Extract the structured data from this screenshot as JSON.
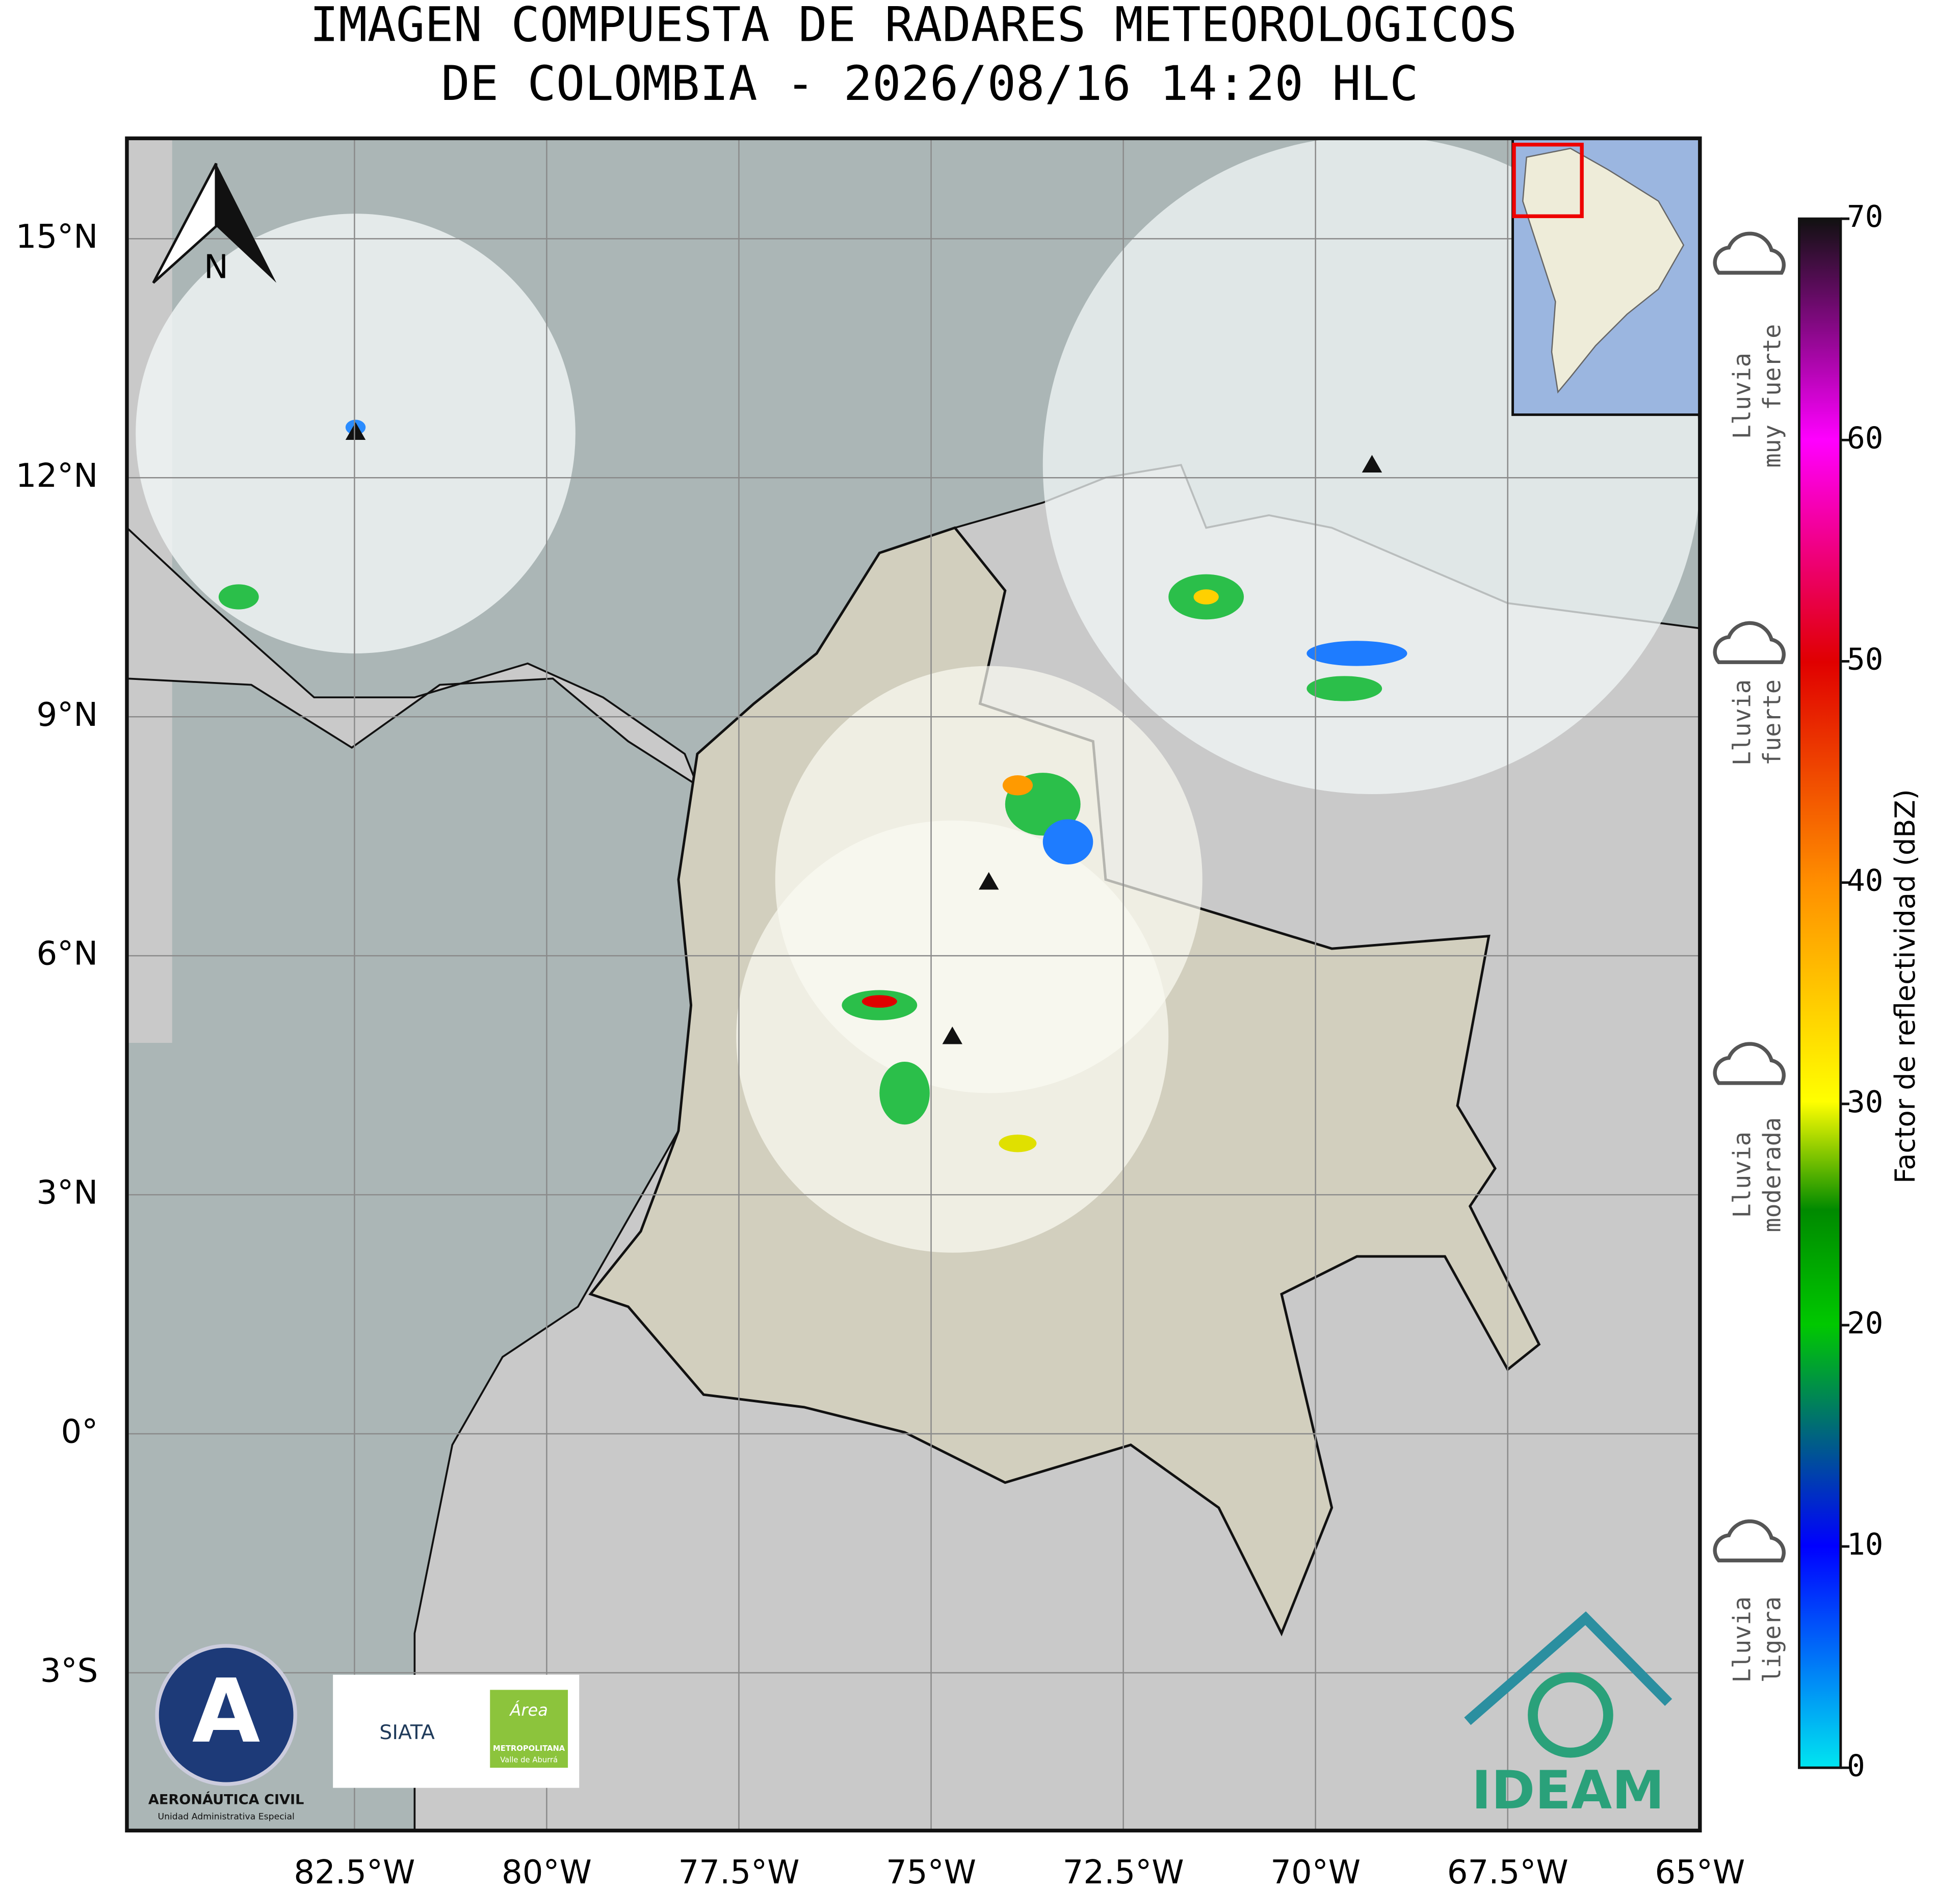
{
  "title": [
    "IMAGEN COMPUESTA DE RADARES METEOROLOGICOS",
    "DE COLOMBIA - 2026/08/16 14:20 HLC"
  ],
  "map": {
    "xlim": [
      -85.46,
      -65
    ],
    "ylim": [
      -4.98,
      16.26
    ],
    "xticks": [
      {
        "value": -82.5,
        "label": "82.5°W"
      },
      {
        "value": -80,
        "label": "80°W"
      },
      {
        "value": -77.5,
        "label": "77.5°W"
      },
      {
        "value": -75,
        "label": "75°W"
      },
      {
        "value": -72.5,
        "label": "72.5°W"
      },
      {
        "value": -70,
        "label": "70°W"
      },
      {
        "value": -67.5,
        "label": "67.5°W"
      },
      {
        "value": -65,
        "label": "65°W"
      }
    ],
    "yticks": [
      {
        "value": 15,
        "label": "15°N"
      },
      {
        "value": 12,
        "label": "12°N"
      },
      {
        "value": 9,
        "label": "9°N"
      },
      {
        "value": 6,
        "label": "6°N"
      },
      {
        "value": 3,
        "label": "3°N"
      },
      {
        "value": 0,
        "label": "0°"
      },
      {
        "value": -3,
        "label": "3°S"
      }
    ],
    "north": "N"
  },
  "colorbar": {
    "label": "Factor de reflectividad (dBZ)",
    "ylim": [
      0,
      70
    ],
    "yticks": [
      0,
      10,
      20,
      30,
      40,
      50,
      60,
      70
    ]
  },
  "legend": [
    [
      "Lluvia",
      "muy fuerte"
    ],
    [
      "Lluvia",
      "fuerte"
    ],
    [
      "Lluvia",
      "moderada"
    ],
    [
      "Lluvia",
      "ligera"
    ]
  ],
  "logos": {
    "aerocivil": [
      "AERONÁUTICA CIVIL",
      "Unidad Administrativa Especial"
    ],
    "siata": "SIATA",
    "area": [
      "Área",
      "METROPOLITANA",
      "Valle de Aburrá"
    ],
    "ideam": "IDEAM"
  }
}
